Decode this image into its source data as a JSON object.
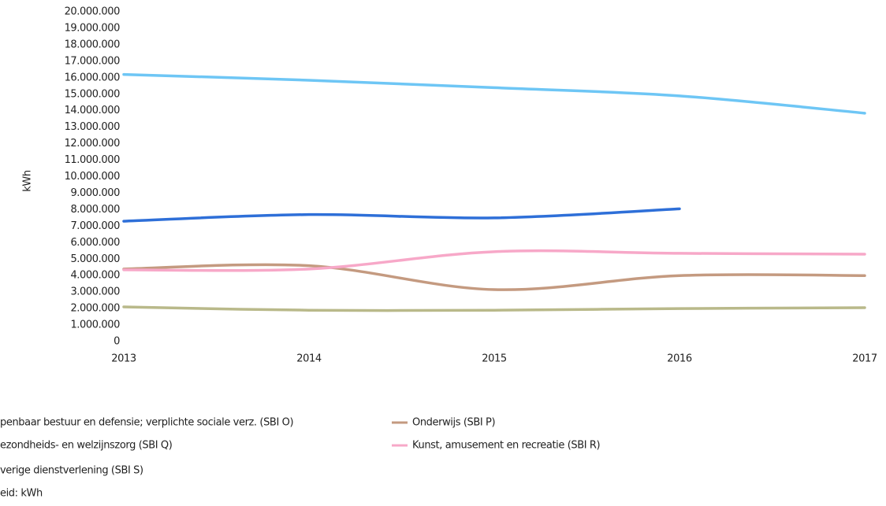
{
  "chart_data": {
    "type": "line",
    "y_label": "kWh",
    "x": [
      2013,
      2014,
      2015,
      2016,
      2017
    ],
    "xlim": [
      2013,
      2017
    ],
    "xticks": [
      2013,
      2014,
      2015,
      2016,
      2017
    ],
    "ylim": [
      0,
      20000000
    ],
    "yticks": [
      0,
      {
        "value": 1000000,
        "label": "1.000.000"
      },
      {
        "value": 2000000,
        "label": "2.000.000"
      },
      {
        "value": 3000000,
        "label": "3.000.000"
      },
      {
        "value": 4000000,
        "label": "4.000.000"
      },
      {
        "value": 5000000,
        "label": "5.000.000"
      },
      {
        "value": 6000000,
        "label": "6.000.000"
      },
      {
        "value": 7000000,
        "label": "7.000.000"
      },
      {
        "value": 8000000,
        "label": "8.000.000"
      },
      {
        "value": 9000000,
        "label": "9.000.000"
      },
      {
        "value": 10000000,
        "label": "10.000.000"
      },
      {
        "value": 11000000,
        "label": "11.000.000"
      },
      {
        "value": 12000000,
        "label": "12.000.000"
      },
      {
        "value": 13000000,
        "label": "13.000.000"
      },
      {
        "value": 14000000,
        "label": "14.000.000"
      },
      {
        "value": 15000000,
        "label": "15.000.000"
      },
      {
        "value": 16000000,
        "label": "16.000.000"
      },
      {
        "value": 17000000,
        "label": "17.000.000"
      },
      {
        "value": 18000000,
        "label": "18.000.000"
      },
      {
        "value": 19000000,
        "label": "19.000.000"
      },
      {
        "value": 20000000,
        "label": "20.000.000"
      }
    ],
    "grid": false,
    "series": [
      {
        "name": "penbaar bestuur en defensie; verplichte sociale verz. (SBI O)",
        "color": "#2e6fd8",
        "values": [
          7300000,
          7700000,
          7500000,
          8050000,
          null
        ]
      },
      {
        "name": "Onderwijs (SBI P)",
        "color": "#c49a80",
        "values": [
          4400000,
          4600000,
          3150000,
          4000000,
          4000000
        ]
      },
      {
        "name": "ezondheids- en welzijnszorg (SBI Q)",
        "color": "#6ec6f5",
        "values": [
          16200000,
          15850000,
          15400000,
          14900000,
          13850000
        ]
      },
      {
        "name": "Kunst, amusement en recreatie (SBI R)",
        "color": "#f7a8c8",
        "values": [
          4350000,
          4400000,
          5450000,
          5350000,
          5300000
        ]
      },
      {
        "name": "verige dienstverlening (SBI S)",
        "color": "#b9b98a",
        "values": [
          2100000,
          1900000,
          1900000,
          2000000,
          2050000
        ]
      }
    ],
    "note": "eid: kWh"
  }
}
